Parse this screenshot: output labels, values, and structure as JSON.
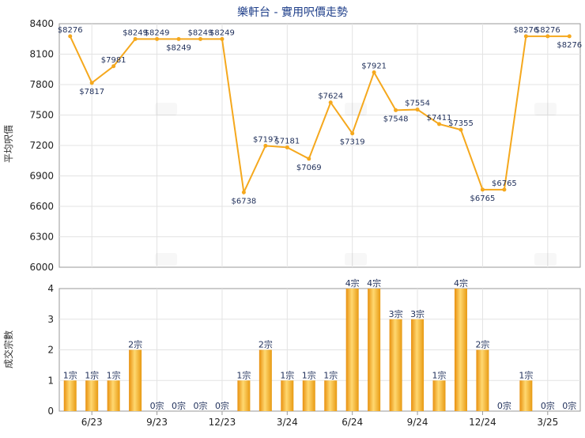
{
  "chart_data": [
    {
      "type": "line",
      "title": "樂軒台 - 實用呎價走勢",
      "ylabel": "平均呎價",
      "ylim": [
        6000,
        8400
      ],
      "yticks": [
        6000,
        6300,
        6600,
        6900,
        7200,
        7500,
        7800,
        8100,
        8400
      ],
      "grid": true,
      "color": "#f5a81d",
      "points": [
        {
          "x": 0,
          "value": 8276,
          "label": "$8276"
        },
        {
          "x": 1,
          "value": 7817,
          "label": "$7817"
        },
        {
          "x": 2,
          "value": 7981,
          "label": "$7981"
        },
        {
          "x": 3,
          "value": 8249,
          "label": "$8249"
        },
        {
          "x": 4,
          "value": 8249,
          "label": "$8249"
        },
        {
          "x": 5,
          "value": 8249,
          "label": "$8249"
        },
        {
          "x": 6,
          "value": 8249,
          "label": "$8249"
        },
        {
          "x": 7,
          "value": 8249,
          "label": "$8249"
        },
        {
          "x": 8,
          "value": 6738,
          "label": "$6738"
        },
        {
          "x": 9,
          "value": 7197,
          "label": "$7197"
        },
        {
          "x": 10,
          "value": 7181,
          "label": "$7181"
        },
        {
          "x": 11,
          "value": 7069,
          "label": "$7069"
        },
        {
          "x": 12,
          "value": 7624,
          "label": "$7624"
        },
        {
          "x": 13,
          "value": 7319,
          "label": "$7319"
        },
        {
          "x": 14,
          "value": 7921,
          "label": "$7921"
        },
        {
          "x": 15,
          "value": 7548,
          "label": "$7548"
        },
        {
          "x": 16,
          "value": 7554,
          "label": "$7554"
        },
        {
          "x": 17,
          "value": 7411,
          "label": "$7411"
        },
        {
          "x": 18,
          "value": 7355,
          "label": "$7355"
        },
        {
          "x": 19,
          "value": 6765,
          "label": "$6765"
        },
        {
          "x": 20,
          "value": 6765,
          "label": "$6765"
        },
        {
          "x": 21,
          "value": 8276,
          "label": "$8276"
        },
        {
          "x": 22,
          "value": 8276,
          "label": "$8276"
        },
        {
          "x": 23,
          "value": 8276,
          "label": "$8276"
        }
      ]
    },
    {
      "type": "bar",
      "ylabel": "成交宗數",
      "ylim": [
        0,
        4
      ],
      "yticks": [
        0,
        1,
        2,
        3,
        4
      ],
      "grid": true,
      "color": "#f5a81d",
      "categories": [
        "",
        "6/23",
        "",
        "",
        "9/23",
        "",
        "",
        "12/23",
        "",
        "",
        "3/24",
        "",
        "",
        "6/24",
        "",
        "",
        "9/24",
        "",
        "",
        "12/24",
        "",
        "",
        "3/25",
        ""
      ],
      "values": [
        1,
        1,
        1,
        2,
        0,
        0,
        0,
        0,
        1,
        2,
        1,
        1,
        1,
        4,
        4,
        3,
        3,
        1,
        4,
        2,
        0,
        1,
        0,
        0
      ],
      "value_labels": [
        "1宗",
        "1宗",
        "1宗",
        "2宗",
        "0宗",
        "0宗",
        "0宗",
        "0宗",
        "1宗",
        "2宗",
        "1宗",
        "1宗",
        "1宗",
        "4宗",
        "4宗",
        "3宗",
        "3宗",
        "1宗",
        "4宗",
        "2宗",
        "0宗",
        "1宗",
        "0宗",
        "0宗"
      ]
    }
  ]
}
